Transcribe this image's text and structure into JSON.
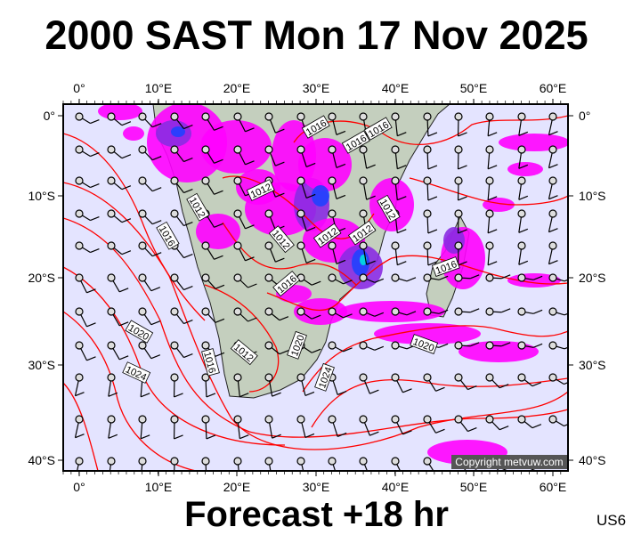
{
  "title": "2000 SAST Mon 17 Nov 2025",
  "footer": "Forecast +18 hr",
  "model_code": "US6",
  "copyright": "Copyright metvuw.com",
  "map": {
    "lon_labels": [
      "0°",
      "10°E",
      "20°E",
      "30°E",
      "40°E",
      "50°E",
      "60°E"
    ],
    "lat_labels": [
      "0°",
      "10°S",
      "20°S",
      "30°S",
      "40°S"
    ],
    "isobar_labels": [
      "1016",
      "1016",
      "1016",
      "1012",
      "1012",
      "1016",
      "1012",
      "1012",
      "1012",
      "1012",
      "1016",
      "1016",
      "1020",
      "1024",
      "1016",
      "1012",
      "1020",
      "1024",
      "1020"
    ],
    "colors": {
      "ocean": "#e4e4ff",
      "land": "#c4cfbe",
      "isobar": "#ff0000",
      "precip_light": "#ff00ff",
      "precip_mid": "#8a2be2",
      "precip_heavy": "#2040ff",
      "precip_extreme": "#00e0e0"
    }
  }
}
